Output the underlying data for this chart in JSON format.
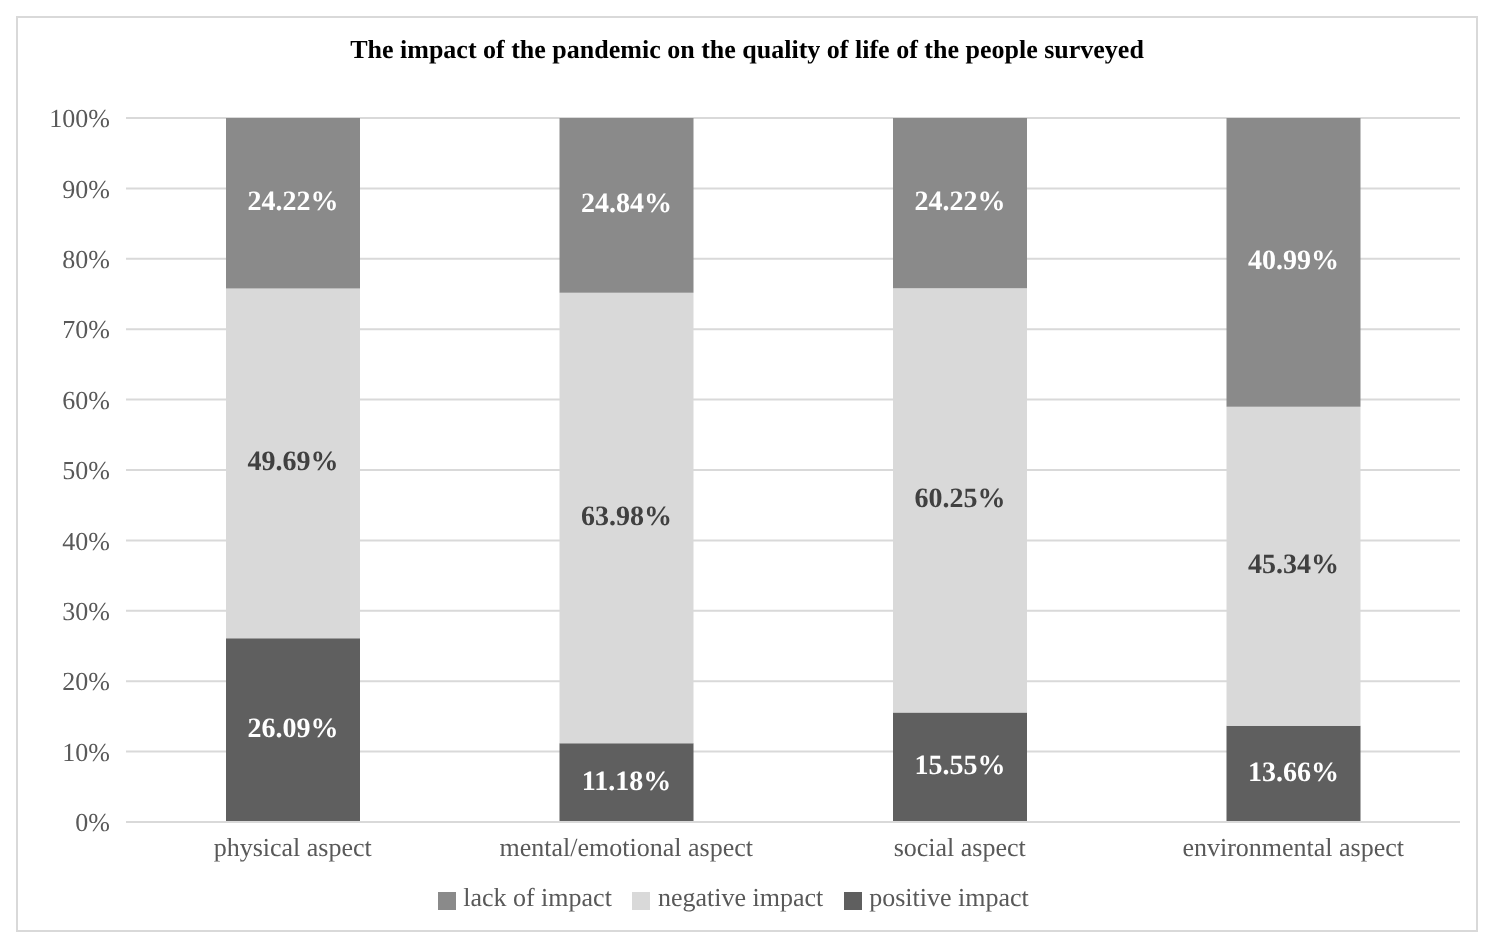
{
  "chart_data": {
    "type": "bar",
    "title": "The impact of the pandemic on the quality of life of the people surveyed",
    "categories": [
      "physical aspect",
      "mental/emotional aspect",
      "social aspect",
      "environmental aspect"
    ],
    "stacked": true,
    "series": [
      {
        "name": "positive impact",
        "color": "#5f5f5f",
        "values": [
          26.09,
          11.18,
          15.55,
          13.66
        ],
        "value_labels": [
          "26.09%",
          "11.18%",
          "15.55%",
          "13.66%"
        ]
      },
      {
        "name": "negative impact",
        "color": "#d9d9d9",
        "values": [
          49.69,
          63.98,
          60.25,
          45.34
        ],
        "value_labels": [
          "49.69%",
          "63.98%",
          "60.25%",
          "45.34%"
        ]
      },
      {
        "name": "lack of impact",
        "color": "#8a8a8a",
        "values": [
          24.22,
          24.84,
          24.22,
          40.99
        ],
        "value_labels": [
          "24.22%",
          "24.84%",
          "24.22%",
          "40.99%"
        ]
      }
    ],
    "ylim": [
      0,
      100
    ],
    "yticks": [
      {
        "value": 0,
        "label": "0%"
      },
      {
        "value": 10,
        "label": "10%"
      },
      {
        "value": 20,
        "label": "20%"
      },
      {
        "value": 30,
        "label": "30%"
      },
      {
        "value": 40,
        "label": "40%"
      },
      {
        "value": 50,
        "label": "50%"
      },
      {
        "value": 60,
        "label": "60%"
      },
      {
        "value": 70,
        "label": "70%"
      },
      {
        "value": 80,
        "label": "80%"
      },
      {
        "value": 90,
        "label": "90%"
      },
      {
        "value": 100,
        "label": "100%"
      }
    ],
    "grid": "y",
    "legend": "bottom"
  }
}
